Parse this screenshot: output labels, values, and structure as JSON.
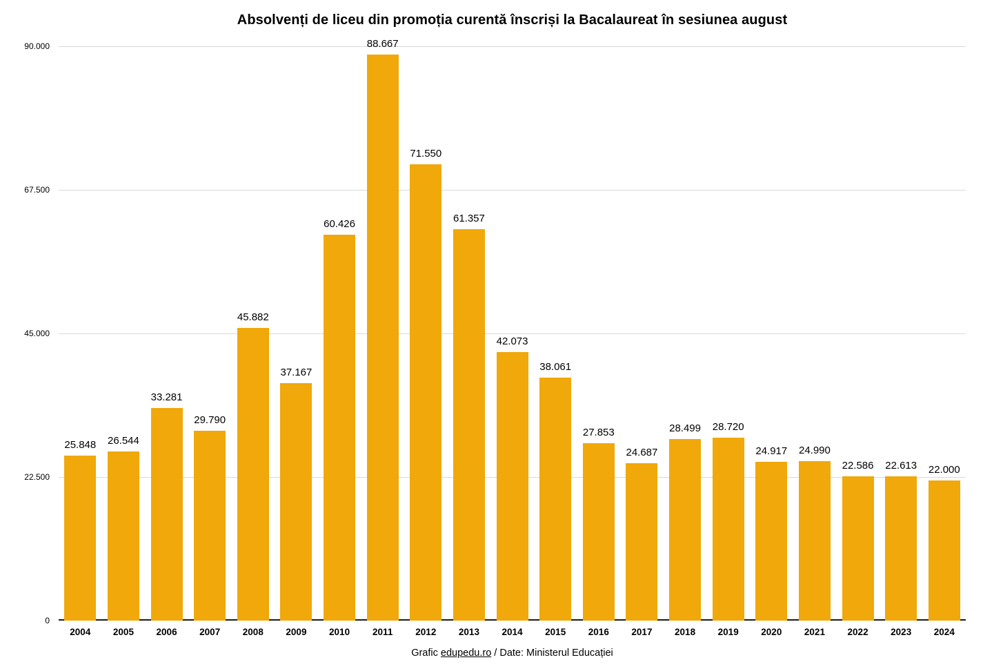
{
  "title": "Absolvenți de liceu din promoția curentă înscriși la Bacalaureat în sesiunea august",
  "footer": {
    "prefix": "Grafic ",
    "link_text": "edupedu.ro",
    "suffix": " / Date: Ministerul Educației"
  },
  "colors": {
    "bar": "#f0a80a",
    "grid": "#d9d9d9",
    "baseline": "#1a1a1a",
    "text": "#000000"
  },
  "y_axis": {
    "tick_labels": [
      "90.000",
      "67.500",
      "45.000",
      "22.500",
      "0"
    ],
    "tick_values": [
      90000,
      67500,
      45000,
      22500,
      0
    ]
  },
  "chart_data": {
    "type": "bar",
    "title": "Absolvenți de liceu din promoția curentă înscriși la Bacalaureat în sesiunea august",
    "categories": [
      "2004",
      "2005",
      "2006",
      "2007",
      "2008",
      "2009",
      "2010",
      "2011",
      "2012",
      "2013",
      "2014",
      "2015",
      "2016",
      "2017",
      "2018",
      "2019",
      "2020",
      "2021",
      "2022",
      "2023",
      "2024"
    ],
    "values": [
      25848,
      26544,
      33281,
      29790,
      45882,
      37167,
      60426,
      88667,
      71550,
      61357,
      42073,
      38061,
      27853,
      24687,
      28499,
      28720,
      24917,
      24990,
      22586,
      22613,
      22000
    ],
    "value_labels": [
      "25.848",
      "26.544",
      "33.281",
      "29.790",
      "45.882",
      "37.167",
      "60.426",
      "88.667",
      "71.550",
      "61.357",
      "42.073",
      "38.061",
      "27.853",
      "24.687",
      "28.499",
      "28.720",
      "24.917",
      "24.990",
      "22.586",
      "22.613",
      "22.000"
    ],
    "xlabel": "",
    "ylabel": "",
    "ylim": [
      0,
      90000
    ],
    "grid": true,
    "legend_position": "none",
    "source_note": "Grafic edupedu.ro / Date: Ministerul Educației"
  }
}
